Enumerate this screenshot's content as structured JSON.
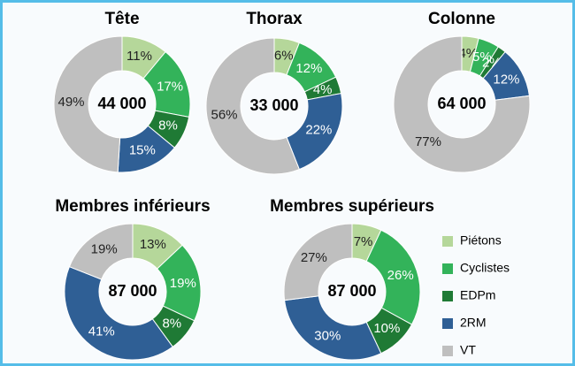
{
  "chart_data": [
    {
      "type": "pie",
      "title": "Tête",
      "center_label": "44 000",
      "categories": [
        "Piétons",
        "Cyclistes",
        "EDPm",
        "2RM",
        "VT"
      ],
      "values": [
        11,
        17,
        8,
        15,
        49
      ],
      "value_labels": [
        "11%",
        "17%",
        "8%",
        "15%",
        "49%"
      ],
      "colors": [
        "#b5d79a",
        "#33b35a",
        "#1f7a35",
        "#2f5f95",
        "#bfbfbf"
      ]
    },
    {
      "type": "pie",
      "title": "Thorax",
      "center_label": "33 000",
      "categories": [
        "Piétons",
        "Cyclistes",
        "EDPm",
        "2RM",
        "VT"
      ],
      "values": [
        6,
        12,
        4,
        22,
        56
      ],
      "value_labels": [
        "6%",
        "12%",
        "4%",
        "22%",
        "56%"
      ],
      "colors": [
        "#b5d79a",
        "#33b35a",
        "#1f7a35",
        "#2f5f95",
        "#bfbfbf"
      ]
    },
    {
      "type": "pie",
      "title": "Colonne",
      "center_label": "64 000",
      "categories": [
        "Piétons",
        "Cyclistes",
        "EDPm",
        "2RM",
        "VT"
      ],
      "values": [
        4,
        5,
        2,
        12,
        77
      ],
      "value_labels": [
        "4%",
        "5%",
        "2%",
        "12%",
        "77%"
      ],
      "colors": [
        "#b5d79a",
        "#33b35a",
        "#1f7a35",
        "#2f5f95",
        "#bfbfbf"
      ]
    },
    {
      "type": "pie",
      "title": "Membres inférieurs",
      "center_label": "87 000",
      "categories": [
        "Piétons",
        "Cyclistes",
        "EDPm",
        "2RM",
        "VT"
      ],
      "values": [
        13,
        19,
        8,
        41,
        19
      ],
      "value_labels": [
        "13%",
        "19%",
        "8%",
        "41%",
        "19%"
      ],
      "colors": [
        "#b5d79a",
        "#33b35a",
        "#1f7a35",
        "#2f5f95",
        "#bfbfbf"
      ]
    },
    {
      "type": "pie",
      "title": "Membres supérieurs",
      "center_label": "87 000",
      "categories": [
        "Piétons",
        "Cyclistes",
        "EDPm",
        "2RM",
        "VT"
      ],
      "values": [
        7,
        26,
        10,
        30,
        27
      ],
      "value_labels": [
        "7%",
        "26%",
        "10%",
        "30%",
        "27%"
      ],
      "colors": [
        "#b5d79a",
        "#33b35a",
        "#1f7a35",
        "#2f5f95",
        "#bfbfbf"
      ],
      "legend": "right"
    }
  ]
}
